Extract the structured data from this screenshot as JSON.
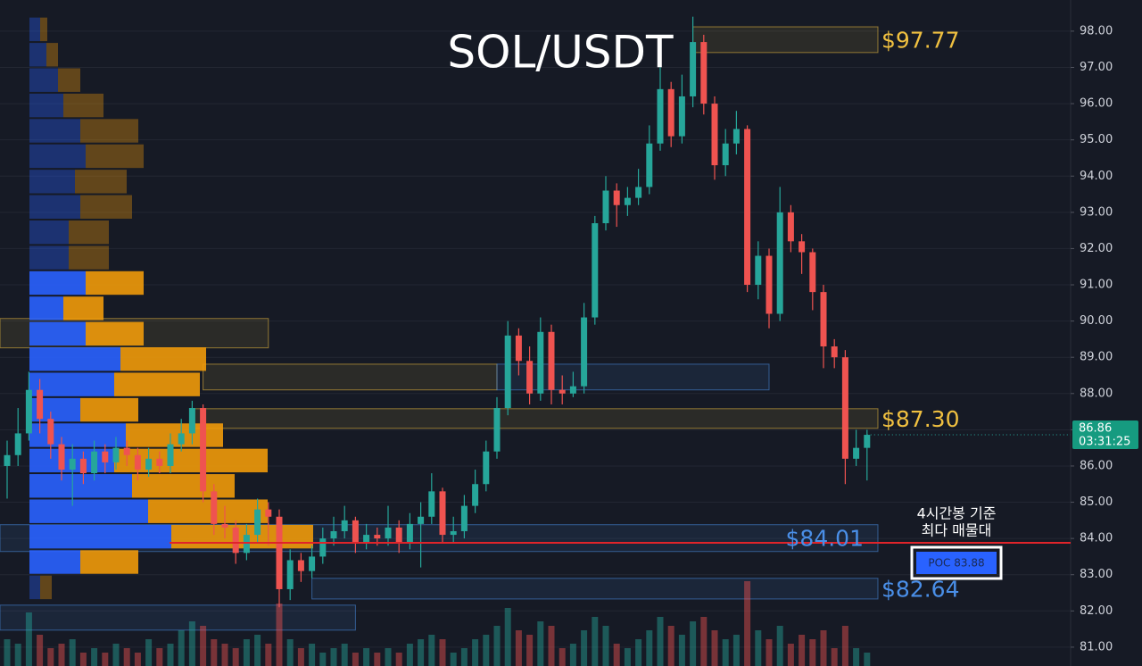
{
  "chart_data": {
    "type": "candlestick",
    "title": "SOL/USDT",
    "ylim": [
      80.48,
      98.86
    ],
    "yticks": [
      {
        "value": 98,
        "label": "98.00"
      },
      {
        "value": 97,
        "label": "97.00"
      },
      {
        "value": 96,
        "label": "96.00"
      },
      {
        "value": 95,
        "label": "95.00"
      },
      {
        "value": 94,
        "label": "94.00"
      },
      {
        "value": 93,
        "label": "93.00"
      },
      {
        "value": 92,
        "label": "92.00"
      },
      {
        "value": 91,
        "label": "91.00"
      },
      {
        "value": 90,
        "label": "90.00"
      },
      {
        "value": 89,
        "label": "89.00"
      },
      {
        "value": 88,
        "label": "88.00"
      },
      {
        "value": 87,
        "label": "87.00"
      },
      {
        "value": 86,
        "label": "86.00"
      },
      {
        "value": 85,
        "label": "85.00"
      },
      {
        "value": 84,
        "label": "84.00"
      },
      {
        "value": 83,
        "label": "83.00"
      },
      {
        "value": 82,
        "label": "82.00"
      },
      {
        "value": 81,
        "label": "81.00"
      }
    ],
    "grid": true,
    "up_color": "#26a69a",
    "down_color": "#ef5350",
    "open": [
      86.0,
      86.3,
      86.9,
      88.1,
      87.3,
      86.6,
      85.9,
      86.2,
      85.8,
      86.4,
      86.1,
      86.5,
      86.3,
      85.9,
      86.2,
      86.0,
      86.6,
      86.9,
      87.6,
      85.3,
      84.4,
      84.3,
      83.6,
      84.1,
      84.8,
      84.6,
      82.6,
      83.4,
      83.1,
      83.5,
      84.0,
      84.2,
      84.5,
      83.9,
      84.1,
      84.0,
      84.3,
      83.9,
      84.4,
      84.6,
      85.3,
      84.1,
      84.2,
      84.9,
      85.5,
      86.4,
      87.6,
      89.6,
      88.9,
      88.0,
      89.7,
      88.1,
      88.0,
      88.2,
      90.1,
      92.7,
      93.6,
      93.2,
      93.4,
      93.7,
      94.9,
      96.4,
      95.1,
      96.2,
      97.7,
      96.0,
      94.3,
      94.9,
      95.3,
      91.0,
      91.8,
      90.2,
      93.0,
      92.2,
      91.9,
      90.8,
      89.3,
      89.0,
      86.2,
      86.5
    ],
    "high": [
      86.7,
      87.6,
      88.6,
      88.4,
      87.5,
      86.8,
      86.6,
      86.4,
      86.7,
      86.6,
      86.8,
      86.7,
      86.5,
      86.5,
      86.4,
      86.9,
      87.3,
      87.8,
      87.7,
      85.5,
      84.9,
      84.5,
      84.4,
      85.1,
      85.0,
      84.8,
      83.7,
      83.6,
      83.8,
      84.3,
      84.6,
      84.9,
      84.6,
      84.4,
      84.3,
      84.9,
      84.5,
      84.7,
      85.0,
      85.8,
      85.4,
      84.6,
      85.2,
      85.9,
      86.7,
      87.9,
      90.0,
      89.8,
      89.3,
      90.1,
      89.9,
      88.5,
      88.6,
      90.5,
      92.9,
      94.0,
      93.8,
      93.7,
      94.2,
      95.4,
      97.0,
      96.6,
      96.8,
      98.4,
      97.9,
      96.2,
      95.3,
      95.8,
      95.4,
      92.2,
      92.0,
      93.7,
      93.2,
      92.4,
      92.0,
      91.0,
      89.5,
      89.2,
      87.0,
      87.0
    ],
    "low": [
      85.1,
      86.0,
      86.7,
      86.9,
      86.2,
      85.6,
      84.9,
      85.5,
      85.6,
      85.8,
      85.9,
      86.0,
      85.6,
      85.7,
      85.8,
      85.8,
      86.4,
      86.6,
      85.0,
      84.1,
      84.0,
      83.3,
      83.4,
      83.9,
      83.8,
      82.1,
      82.3,
      82.8,
      82.9,
      83.3,
      83.8,
      84.0,
      83.6,
      83.7,
      83.8,
      83.8,
      83.6,
      83.7,
      83.2,
      84.4,
      83.9,
      83.9,
      84.0,
      84.7,
      85.3,
      86.2,
      87.4,
      88.5,
      87.7,
      87.8,
      87.7,
      87.7,
      87.9,
      88.0,
      89.9,
      92.5,
      92.6,
      92.9,
      93.2,
      93.5,
      94.7,
      94.8,
      94.9,
      95.9,
      95.7,
      93.9,
      94.0,
      94.6,
      90.8,
      90.6,
      89.8,
      90.0,
      91.9,
      91.3,
      90.3,
      88.7,
      88.7,
      85.5,
      86.0,
      85.6
    ],
    "close": [
      86.3,
      86.9,
      88.1,
      87.3,
      86.6,
      85.9,
      86.2,
      85.8,
      86.4,
      86.1,
      86.5,
      86.3,
      85.9,
      86.2,
      86.0,
      86.6,
      86.9,
      87.6,
      85.3,
      84.4,
      84.3,
      83.6,
      84.1,
      84.8,
      84.6,
      82.6,
      83.4,
      83.1,
      83.5,
      84.0,
      84.2,
      84.5,
      83.9,
      84.1,
      84.0,
      84.3,
      83.9,
      84.4,
      84.6,
      85.3,
      84.1,
      84.2,
      84.9,
      85.5,
      86.4,
      87.6,
      89.6,
      88.9,
      88.0,
      89.7,
      88.1,
      88.0,
      88.2,
      90.1,
      92.7,
      93.6,
      93.2,
      93.4,
      93.7,
      94.9,
      96.4,
      95.1,
      96.2,
      97.7,
      96.0,
      94.3,
      94.9,
      95.3,
      91.0,
      91.8,
      90.2,
      93.0,
      92.2,
      91.9,
      90.8,
      89.3,
      89.0,
      86.2,
      86.5,
      86.86
    ],
    "volume": [
      30,
      25,
      60,
      35,
      20,
      25,
      30,
      15,
      20,
      15,
      25,
      20,
      15,
      30,
      20,
      25,
      40,
      50,
      45,
      30,
      25,
      20,
      30,
      35,
      25,
      70,
      30,
      20,
      25,
      15,
      20,
      25,
      15,
      20,
      15,
      20,
      15,
      25,
      30,
      35,
      30,
      15,
      20,
      30,
      35,
      45,
      65,
      40,
      35,
      50,
      45,
      20,
      25,
      40,
      55,
      45,
      25,
      20,
      30,
      40,
      55,
      45,
      35,
      50,
      55,
      40,
      30,
      35,
      95,
      40,
      30,
      45,
      25,
      35,
      30,
      40,
      20,
      45,
      20,
      15
    ],
    "volume_lim": [
      0,
      100
    ],
    "volume_profile": {
      "bins": [
        98.4,
        97.7,
        97.0,
        96.3,
        95.6,
        94.9,
        94.2,
        93.5,
        92.8,
        92.1,
        91.4,
        90.7,
        90.0,
        89.3,
        88.6,
        87.9,
        87.2,
        86.5,
        85.8,
        85.1,
        84.4,
        83.7,
        83.0,
        82.3
      ],
      "buy": [
        12,
        19,
        32,
        38,
        57,
        63,
        51,
        57,
        44,
        44,
        63,
        38,
        63,
        102,
        95,
        57,
        108,
        95,
        115,
        133,
        159,
        57,
        12
      ],
      "sell": [
        8,
        13,
        25,
        45,
        65,
        65,
        58,
        58,
        45,
        45,
        65,
        45,
        65,
        96,
        96,
        65,
        109,
        172,
        115,
        134,
        159,
        65,
        13
      ],
      "buy_color": "#2962ff",
      "sell_color": "#f09a0a",
      "value_area": [
        83.0,
        91.4
      ]
    },
    "zones": [
      {
        "from": 97.41,
        "to": 98.12,
        "start": 63,
        "end": 80,
        "color": "#f0c040",
        "label": "$97.77"
      },
      {
        "from": 89.26,
        "to": 90.07,
        "start": -1,
        "end": 24,
        "color": "#f0c040"
      },
      {
        "from": 88.1,
        "to": 88.81,
        "start": 18,
        "end": 45,
        "color": "#f0c040"
      },
      {
        "from": 88.1,
        "to": 88.81,
        "start": 45,
        "end": 70,
        "color": "#4a8fe8"
      },
      {
        "from": 87.04,
        "to": 87.58,
        "start": 17,
        "end": 80,
        "color": "#f0c040",
        "label": "$87.30"
      },
      {
        "from": 83.64,
        "to": 84.38,
        "start": -1,
        "end": 80,
        "color": "#4a8fe8",
        "label": "$84.01"
      },
      {
        "from": 82.33,
        "to": 82.9,
        "start": 28,
        "end": 80,
        "color": "#4a8fe8",
        "label": "$82.64"
      },
      {
        "from": 81.47,
        "to": 82.16,
        "start": -1,
        "end": 32,
        "color": "#4a8fe8"
      }
    ],
    "poc": {
      "value": 83.88,
      "label": "POC  83.88",
      "color": "#e0242a"
    },
    "annotation": [
      "4시간봉 기준",
      "최다 매물대"
    ],
    "last_price": 86.86,
    "countdown": "03:31:25"
  }
}
